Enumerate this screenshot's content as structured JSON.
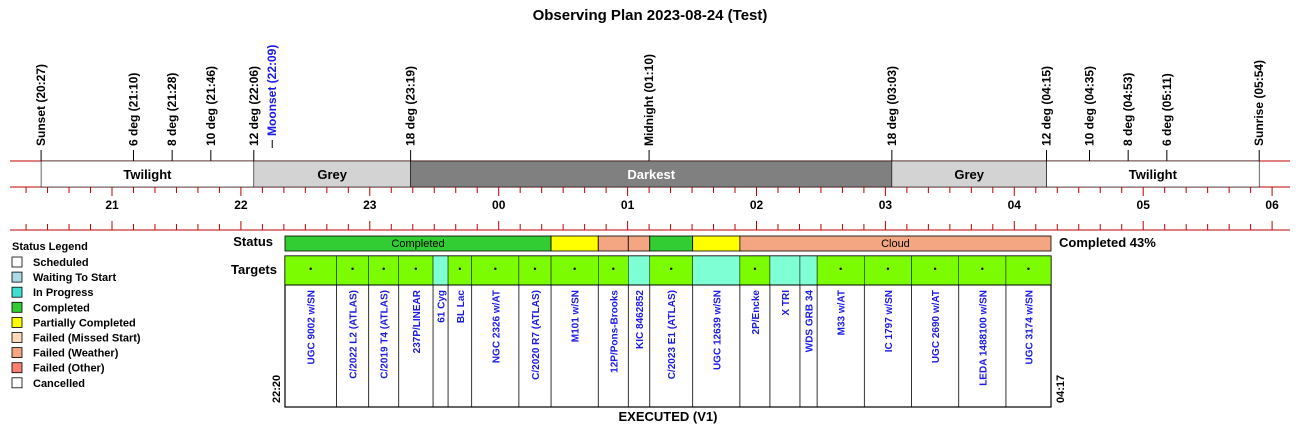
{
  "title": "Observing Plan 2023-08-24 (Test)",
  "night_events": [
    {
      "label": "Sunset (20:27)",
      "time": "20:27",
      "color": "#000000"
    },
    {
      "label": "6 deg (21:10)",
      "time": "21:10",
      "color": "#000000"
    },
    {
      "label": "8 deg (21:28)",
      "time": "21:28",
      "color": "#000000"
    },
    {
      "label": "10 deg (21:46)",
      "time": "21:46",
      "color": "#000000"
    },
    {
      "label": "12 deg (22:06)",
      "time": "22:06",
      "color": "#000000"
    },
    {
      "label": "Moonset (22:09)",
      "time": "22:09",
      "color": "#1a1ae6"
    },
    {
      "label": "18 deg (23:19)",
      "time": "23:19",
      "color": "#000000"
    },
    {
      "label": "Midnight (01:10)",
      "time": "01:10",
      "color": "#000000"
    },
    {
      "label": "18 deg (03:03)",
      "time": "03:03",
      "color": "#000000"
    },
    {
      "label": "12 deg (04:15)",
      "time": "04:15",
      "color": "#000000"
    },
    {
      "label": "10 deg (04:35)",
      "time": "04:35",
      "color": "#000000"
    },
    {
      "label": "8 deg (04:53)",
      "time": "04:53",
      "color": "#000000"
    },
    {
      "label": "6 deg (05:11)",
      "time": "05:11",
      "color": "#000000"
    },
    {
      "label": "Sunrise (05:54)",
      "time": "05:54",
      "color": "#000000"
    }
  ],
  "sky_phases": [
    {
      "label": "Twilight",
      "start": "20:27",
      "end": "22:06",
      "color": "#ffffff",
      "text_color": "#000000"
    },
    {
      "label": "Grey",
      "start": "22:06",
      "end": "23:19",
      "color": "#d3d3d3",
      "text_color": "#000000"
    },
    {
      "label": "Darkest",
      "start": "23:19",
      "end": "03:03",
      "color": "#808080",
      "text_color": "#ffffff"
    },
    {
      "label": "Grey",
      "start": "03:03",
      "end": "04:15",
      "color": "#d3d3d3",
      "text_color": "#000000"
    },
    {
      "label": "Twilight",
      "start": "04:15",
      "end": "05:54",
      "color": "#ffffff",
      "text_color": "#000000"
    }
  ],
  "hour_labels": [
    "21",
    "22",
    "23",
    "00",
    "01",
    "02",
    "03",
    "04",
    "05",
    "06"
  ],
  "status_row": {
    "label": "Status",
    "summary": "Completed 43%",
    "segments": [
      {
        "label": "Completed",
        "start": "22:20",
        "end": "00:24",
        "status": "completed"
      },
      {
        "label": "",
        "start": "00:24",
        "end": "00:46",
        "status": "partial"
      },
      {
        "label": "",
        "start": "00:46",
        "end": "01:00",
        "status": "weather"
      },
      {
        "label": "",
        "start": "01:00",
        "end": "01:10",
        "status": "weather"
      },
      {
        "label": "",
        "start": "01:10",
        "end": "01:30",
        "status": "completed"
      },
      {
        "label": "",
        "start": "01:30",
        "end": "01:52",
        "status": "partial"
      },
      {
        "label": "Cloud",
        "start": "01:52",
        "end": "04:17",
        "status": "weather"
      }
    ]
  },
  "targets_row": {
    "label": "Targets",
    "start_time": "22:20",
    "end_time": "04:17",
    "footer": "EXECUTED (V1)",
    "items": [
      {
        "name": "UGC 9002 w/SN",
        "start": "22:20",
        "end": "22:44",
        "status": "completed"
      },
      {
        "name": "C/2022 L2 (ATLAS)",
        "start": "22:44",
        "end": "22:59",
        "status": "completed"
      },
      {
        "name": "C/2019 T4 (ATLAS)",
        "start": "22:59",
        "end": "23:13",
        "status": "completed"
      },
      {
        "name": "237P/LINEAR",
        "start": "23:13",
        "end": "23:29",
        "status": "completed"
      },
      {
        "name": "61 Cyg",
        "start": "23:29",
        "end": "23:36",
        "status": "inprogress"
      },
      {
        "name": "BL Lac",
        "start": "23:36",
        "end": "23:47",
        "status": "completed"
      },
      {
        "name": "NGC 2326 w/AT",
        "start": "23:47",
        "end": "24:09",
        "status": "completed"
      },
      {
        "name": "C/2020 R7 (ATLAS)",
        "start": "24:09",
        "end": "24:24",
        "status": "completed"
      },
      {
        "name": "M101 w/SN",
        "start": "24:24",
        "end": "24:46",
        "status": "completed"
      },
      {
        "name": "12P/Pons-Brooks",
        "start": "24:46",
        "end": "25:00",
        "status": "completed"
      },
      {
        "name": "KIC 8462852",
        "start": "25:00",
        "end": "25:10",
        "status": "inprogress"
      },
      {
        "name": "C/2023 E1 (ATLAS)",
        "start": "25:10",
        "end": "25:30",
        "status": "completed"
      },
      {
        "name": "UGC 12639 w/SN",
        "start": "25:30",
        "end": "25:52",
        "status": "inprogress"
      },
      {
        "name": "2P/Encke",
        "start": "25:52",
        "end": "26:06",
        "status": "completed"
      },
      {
        "name": "X TRI",
        "start": "26:06",
        "end": "26:20",
        "status": "inprogress"
      },
      {
        "name": "WDS GRB 34",
        "start": "26:20",
        "end": "26:28",
        "status": "inprogress"
      },
      {
        "name": "M33 w/AT",
        "start": "26:28",
        "end": "26:50",
        "status": "completed"
      },
      {
        "name": "IC 1797 w/SN",
        "start": "26:50",
        "end": "27:12",
        "status": "completed"
      },
      {
        "name": "UGC 2690 w/AT",
        "start": "27:12",
        "end": "27:34",
        "status": "completed"
      },
      {
        "name": "LEDA 1488100 w/SN",
        "start": "27:34",
        "end": "27:56",
        "status": "completed"
      },
      {
        "name": "UGC 3174 w/SN",
        "start": "27:56",
        "end": "28:17",
        "status": "completed"
      }
    ]
  },
  "status_colors": {
    "scheduled": "#ffffff",
    "waiting": "#add8e6",
    "inprogress": "#40e0d0",
    "completed": "#32cd32",
    "partial": "#ffff00",
    "missed": "#ffdab9",
    "weather": "#f4a582",
    "other": "#fa8072",
    "cancelled": "#ffffff",
    "target_completed": "#7cfc00",
    "target_inprogress": "#7fffd4"
  },
  "legend": {
    "title": "Status Legend",
    "items": [
      {
        "label": "Scheduled",
        "status": "scheduled"
      },
      {
        "label": "Waiting To Start",
        "status": "waiting"
      },
      {
        "label": "In Progress",
        "status": "inprogress"
      },
      {
        "label": "Completed",
        "status": "completed"
      },
      {
        "label": "Partially Completed",
        "status": "partial"
      },
      {
        "label": "Failed (Missed Start)",
        "status": "missed"
      },
      {
        "label": "Failed (Weather)",
        "status": "weather"
      },
      {
        "label": "Failed (Other)",
        "status": "other"
      },
      {
        "label": "Cancelled",
        "status": "cancelled"
      }
    ]
  },
  "accent_color": "#c00000",
  "link_color": "#1a1ae6"
}
